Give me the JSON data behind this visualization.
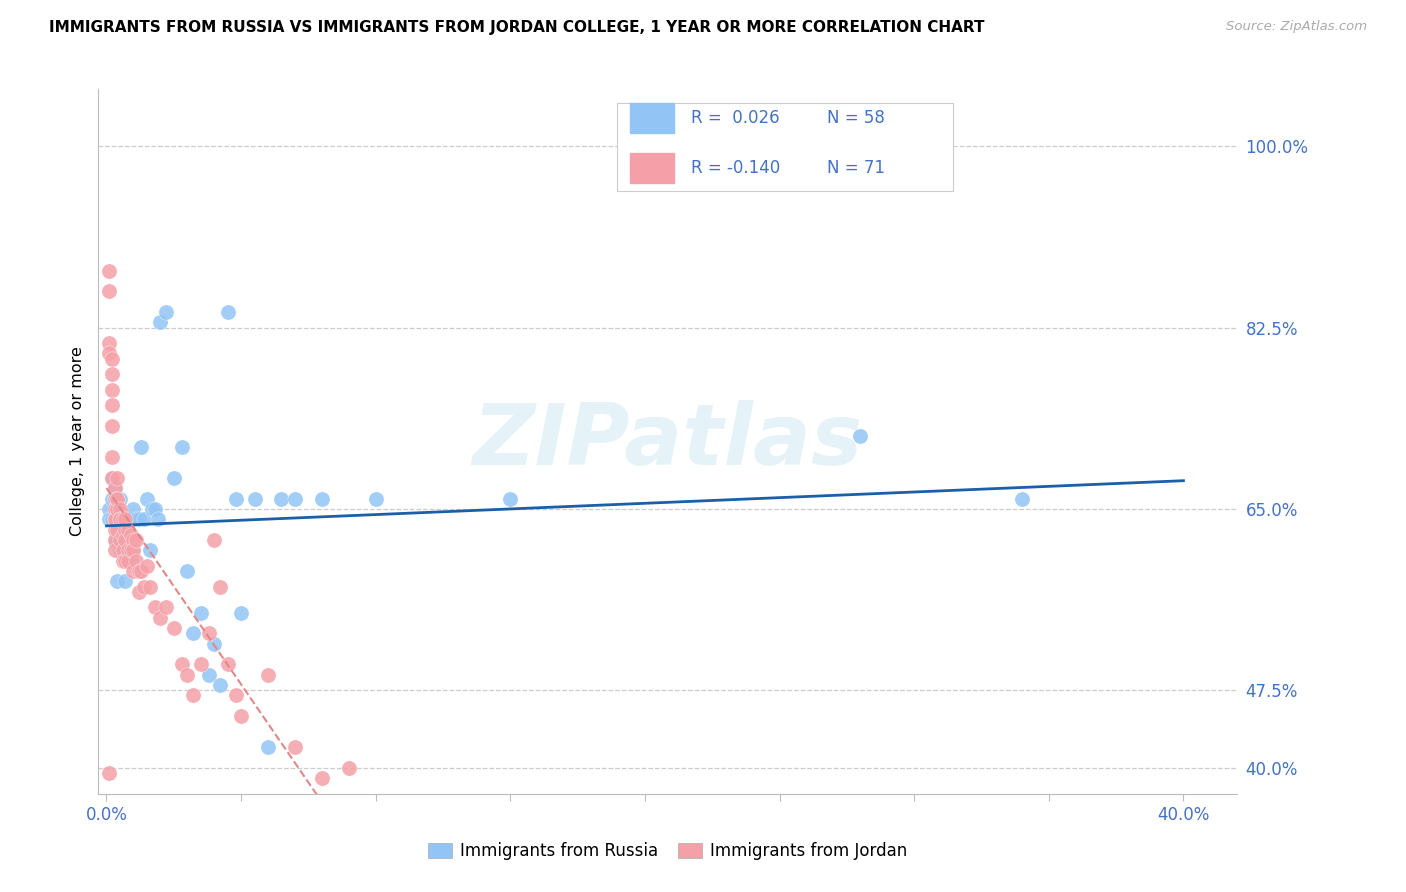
{
  "title": "IMMIGRANTS FROM RUSSIA VS IMMIGRANTS FROM JORDAN COLLEGE, 1 YEAR OR MORE CORRELATION CHART",
  "source": "Source: ZipAtlas.com",
  "ylabel": "College, 1 year or more",
  "ylim": [
    0.375,
    1.055
  ],
  "xlim": [
    -0.003,
    0.42
  ],
  "russia_R": 0.026,
  "russia_N": 58,
  "jordan_R": -0.14,
  "jordan_N": 71,
  "russia_color": "#92c5f5",
  "jordan_color": "#f5a0a8",
  "russia_line_color": "#1a5fa8",
  "jordan_line_color": "#e08888",
  "legend_text_color": "#4472c4",
  "ytick_positions": [
    0.4,
    0.475,
    0.65,
    0.825,
    1.0
  ],
  "ytick_labels": [
    "40.0%",
    "47.5%",
    "65.0%",
    "82.5%",
    "100.0%"
  ],
  "xtick_positions": [
    0.0,
    0.05,
    0.1,
    0.15,
    0.2,
    0.25,
    0.3,
    0.35,
    0.4
  ],
  "xtick_labels": [
    "0.0%",
    "",
    "",
    "",
    "",
    "",
    "",
    "",
    "40.0%"
  ],
  "axis_color": "#4472c4",
  "grid_color": "#cccccc",
  "russia_x": [
    0.001,
    0.001,
    0.002,
    0.002,
    0.002,
    0.003,
    0.003,
    0.003,
    0.003,
    0.004,
    0.004,
    0.004,
    0.004,
    0.005,
    0.005,
    0.005,
    0.006,
    0.006,
    0.007,
    0.007,
    0.007,
    0.008,
    0.008,
    0.009,
    0.009,
    0.01,
    0.01,
    0.011,
    0.012,
    0.013,
    0.014,
    0.015,
    0.016,
    0.017,
    0.018,
    0.019,
    0.02,
    0.022,
    0.025,
    0.028,
    0.03,
    0.032,
    0.035,
    0.038,
    0.04,
    0.042,
    0.045,
    0.048,
    0.05,
    0.055,
    0.06,
    0.065,
    0.07,
    0.08,
    0.1,
    0.15,
    0.28,
    0.34
  ],
  "russia_y": [
    0.65,
    0.64,
    0.64,
    0.66,
    0.68,
    0.62,
    0.64,
    0.66,
    0.67,
    0.58,
    0.62,
    0.64,
    0.66,
    0.61,
    0.63,
    0.66,
    0.61,
    0.64,
    0.58,
    0.61,
    0.64,
    0.61,
    0.64,
    0.6,
    0.64,
    0.61,
    0.65,
    0.64,
    0.64,
    0.71,
    0.64,
    0.66,
    0.61,
    0.65,
    0.65,
    0.64,
    0.83,
    0.84,
    0.68,
    0.71,
    0.59,
    0.53,
    0.55,
    0.49,
    0.52,
    0.48,
    0.84,
    0.66,
    0.55,
    0.66,
    0.42,
    0.66,
    0.66,
    0.66,
    0.66,
    0.66,
    0.72,
    0.66
  ],
  "jordan_x": [
    0.001,
    0.001,
    0.001,
    0.001,
    0.001,
    0.002,
    0.002,
    0.002,
    0.002,
    0.002,
    0.002,
    0.002,
    0.003,
    0.003,
    0.003,
    0.003,
    0.003,
    0.003,
    0.003,
    0.003,
    0.004,
    0.004,
    0.004,
    0.004,
    0.004,
    0.005,
    0.005,
    0.005,
    0.005,
    0.006,
    0.006,
    0.006,
    0.006,
    0.007,
    0.007,
    0.007,
    0.007,
    0.008,
    0.008,
    0.008,
    0.009,
    0.009,
    0.01,
    0.01,
    0.01,
    0.011,
    0.011,
    0.012,
    0.012,
    0.013,
    0.014,
    0.015,
    0.016,
    0.018,
    0.02,
    0.022,
    0.025,
    0.028,
    0.03,
    0.032,
    0.035,
    0.038,
    0.04,
    0.042,
    0.045,
    0.048,
    0.05,
    0.06,
    0.07,
    0.08,
    0.09
  ],
  "jordan_y": [
    0.88,
    0.86,
    0.81,
    0.8,
    0.395,
    0.795,
    0.78,
    0.765,
    0.75,
    0.73,
    0.7,
    0.68,
    0.67,
    0.66,
    0.65,
    0.64,
    0.63,
    0.62,
    0.61,
    0.64,
    0.68,
    0.66,
    0.65,
    0.63,
    0.66,
    0.65,
    0.64,
    0.62,
    0.64,
    0.625,
    0.61,
    0.6,
    0.64,
    0.63,
    0.62,
    0.6,
    0.64,
    0.63,
    0.61,
    0.6,
    0.625,
    0.61,
    0.62,
    0.61,
    0.59,
    0.62,
    0.6,
    0.59,
    0.57,
    0.59,
    0.575,
    0.595,
    0.575,
    0.555,
    0.545,
    0.555,
    0.535,
    0.5,
    0.49,
    0.47,
    0.5,
    0.53,
    0.62,
    0.575,
    0.5,
    0.47,
    0.45,
    0.49,
    0.42,
    0.39,
    0.4
  ]
}
